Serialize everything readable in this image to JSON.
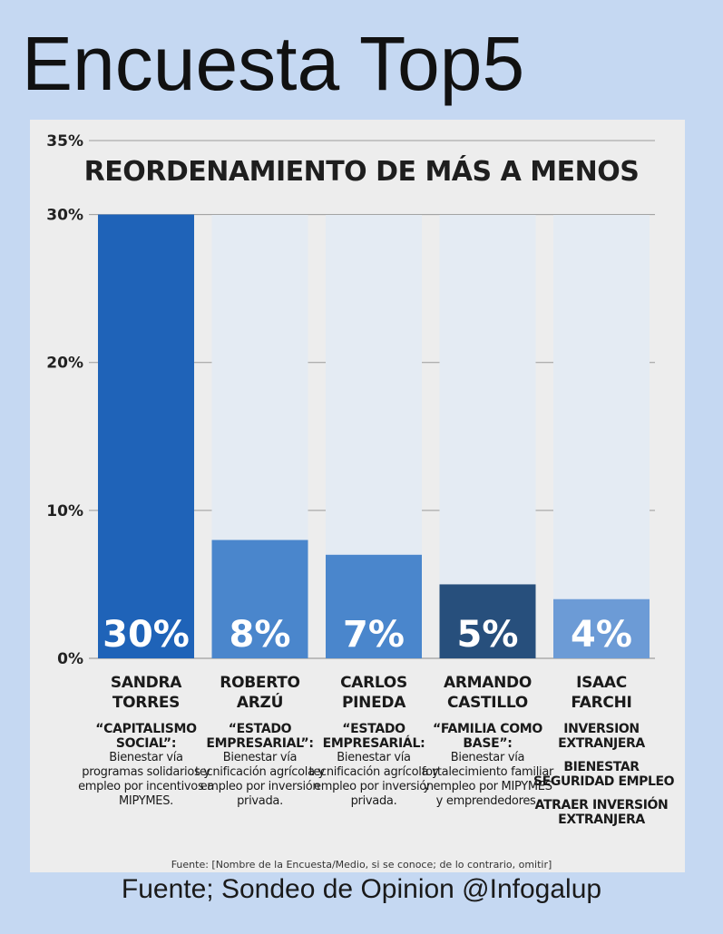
{
  "header": {
    "title": "Encuesta Top5"
  },
  "chart_data": {
    "type": "bar",
    "title": "REORDENAMIENTO DE MÁS A MENOS",
    "categories": [
      "SANDRA TORRES",
      "ROBERTO ARZÚ",
      "CARLOS PINEDA",
      "ARMANDO CASTILLO",
      "ISAAC FARCHI"
    ],
    "values": [
      30,
      8,
      7,
      5,
      4
    ],
    "value_labels": [
      "30%",
      "8%",
      "7%",
      "5%",
      "4%"
    ],
    "y_ticks": [
      0,
      10,
      20,
      30,
      35
    ],
    "y_tick_labels": [
      "0%",
      "10%",
      "20%",
      "30%",
      "35%"
    ],
    "ylim": [
      0,
      35
    ],
    "grid": true,
    "bar_colors": [
      "#1f63b8",
      "#4a86cc",
      "#4a86cc",
      "#274f7c",
      "#6c9bd6"
    ]
  },
  "candidates": [
    {
      "name_line1": "SANDRA",
      "name_line2": "TORRES",
      "slogan": "“CAPITALISMO SOCIAL”:",
      "description": "Bienestar vía programas solidarios y empleo por incentivos a MIPYMES."
    },
    {
      "name_line1": "ROBERTO",
      "name_line2": "ARZÚ",
      "slogan": "“ESTADO EMPRESARIAL”:",
      "description": "Bienestar vía tecnificación agrícola y empleo por inversión privada."
    },
    {
      "name_line1": "CARLOS",
      "name_line2": "PINEDA",
      "slogan": "“ESTADO EMPRESARIÁL:",
      "description": "Bienestar vía tecnificación agrícola y empleo por inversión privada."
    },
    {
      "name_line1": "ARMANDO",
      "name_line2": "CASTILLO",
      "slogan": "“FAMILIA COMO BASE”:",
      "description": "Bienestar vía fortalecimiento familiar y empleo por MIPYMES y emprendedores."
    },
    {
      "name_line1": "ISAAC",
      "name_line2": "FARCHI",
      "lines": [
        "INVERSION",
        "EXTRANJERA",
        "BIENESTAR",
        "SEGURIDAD EMPLEO",
        "ATRAER INVERSIÓN",
        "EXTRANJERA"
      ]
    }
  ],
  "footer": {
    "source_note": "Fuente: [Nombre de la Encuesta/Medio, si se conoce; de lo contrario, omitir]",
    "source": "Fuente; Sondeo de Opinion @Infogalup"
  }
}
